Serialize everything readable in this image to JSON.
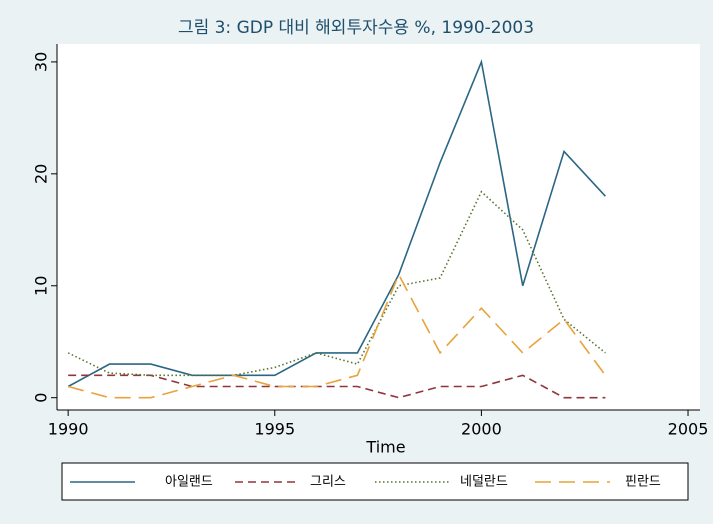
{
  "chart_data": {
    "type": "line",
    "title": "그림 3: GDP 대비 해외투자수용 %, 1990-2003",
    "x_label": "Time",
    "x": [
      1990,
      1991,
      1992,
      1993,
      1994,
      1995,
      1996,
      1997,
      1998,
      1999,
      2000,
      2001,
      2002,
      2003
    ],
    "series": [
      {
        "name": "아일랜드",
        "color": "#2b6785",
        "dash": "solid",
        "values": [
          1,
          3,
          3,
          2,
          2,
          2,
          4,
          4,
          11,
          21,
          30,
          10,
          22,
          18
        ]
      },
      {
        "name": "그리스",
        "color": "#90353b",
        "dash": "dash",
        "values": [
          2,
          2,
          2,
          1,
          1,
          1,
          1,
          1,
          0,
          1,
          1,
          2,
          0,
          0
        ]
      },
      {
        "name": "네덜란드",
        "color": "#55752f",
        "dash": "dot",
        "values": [
          4,
          2.2,
          2,
          2,
          2,
          2.7,
          4,
          3,
          10,
          10.7,
          18.4,
          15,
          7,
          4
        ]
      },
      {
        "name": "핀란드",
        "color": "#e8a33c",
        "dash": "longdash",
        "values": [
          1,
          0,
          0,
          1,
          2,
          1,
          1,
          2,
          11,
          4,
          8,
          4,
          7,
          2
        ]
      }
    ],
    "xlim": [
      1989.73,
      2005.29
    ],
    "xticks": [
      1990,
      1995,
      2000,
      2005
    ],
    "ylim": [
      -1.1,
      31.6
    ],
    "yticks": [
      0,
      10,
      20,
      30
    ],
    "grid": false,
    "legend": "bottom"
  }
}
